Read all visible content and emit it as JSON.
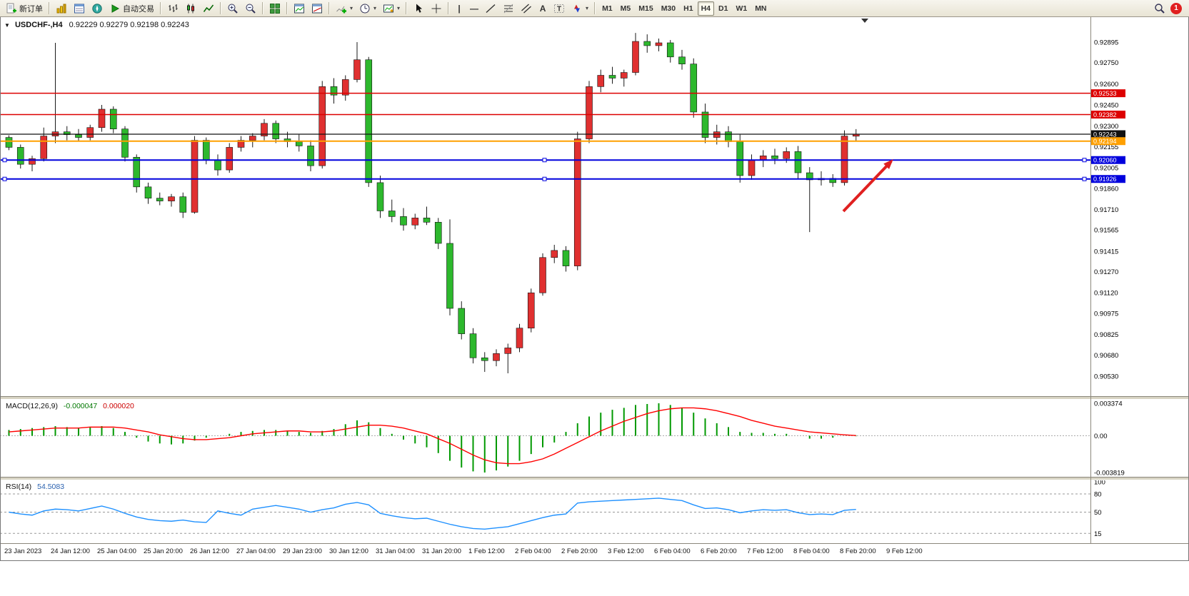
{
  "toolbar": {
    "new_order_label": "新订单",
    "autotrading_label": "自动交易",
    "timeframes": [
      "M1",
      "M5",
      "M15",
      "M30",
      "H1",
      "H4",
      "D1",
      "W1",
      "MN"
    ],
    "active_timeframe": "H4",
    "notification_count": "1",
    "icons": [
      "new-order",
      "market-watch",
      "data-window",
      "navigator",
      "autotrading",
      "bar-chart",
      "candlestick-chart",
      "line-chart",
      "zoom-in",
      "zoom-out",
      "tile-windows",
      "indicator-window",
      "objects-window",
      "add-indicator",
      "periods",
      "templates",
      "cursor",
      "crosshair",
      "vertical-line",
      "horizontal-line",
      "trendline",
      "fibonacci",
      "equidistant-channel",
      "text",
      "text-label",
      "arrows",
      "search",
      "notifications"
    ]
  },
  "chart_data": {
    "type": "candlestick",
    "symbol": "USDCHF",
    "timeframe": "H4",
    "title": "USDCHF-,H4",
    "ohlc_text": "0.92229 0.92279 0.92198 0.92243",
    "bull_color": "#e03030",
    "bear_color": "#2db82d",
    "wick_color": "#1a1a1a",
    "ylim": [
      0.90388,
      0.93072
    ],
    "price_labels": [
      "0.92895",
      "0.92750",
      "0.92600",
      "0.92450",
      "0.92300",
      "0.92155",
      "0.92005",
      "0.91860",
      "0.91710",
      "0.91565",
      "0.91415",
      "0.91270",
      "0.91120",
      "0.90975",
      "0.90825",
      "0.90680",
      "0.90530"
    ],
    "time_labels": [
      "23 Jan 2023",
      "24 Jan 12:00",
      "25 Jan 04:00",
      "25 Jan 20:00",
      "26 Jan 12:00",
      "27 Jan 04:00",
      "29 Jan 23:00",
      "30 Jan 12:00",
      "31 Jan 04:00",
      "31 Jan 20:00",
      "1 Feb 12:00",
      "2 Feb 04:00",
      "2 Feb 20:00",
      "3 Feb 12:00",
      "6 Feb 04:00",
      "6 Feb 20:00",
      "7 Feb 12:00",
      "8 Feb 04:00",
      "8 Feb 20:00",
      "9 Feb 12:00"
    ],
    "candles": [
      [
        0.9222,
        0.92235,
        0.9213,
        0.9215
      ],
      [
        0.9215,
        0.9217,
        0.92,
        0.9203
      ],
      [
        0.9203,
        0.9209,
        0.9198,
        0.9207
      ],
      [
        0.9207,
        0.9229,
        0.9205,
        0.9223
      ],
      [
        0.9223,
        0.9289,
        0.9218,
        0.9226
      ],
      [
        0.9226,
        0.923,
        0.922,
        0.9224
      ],
      [
        0.9224,
        0.9228,
        0.9219,
        0.9222
      ],
      [
        0.9222,
        0.9231,
        0.922,
        0.9229
      ],
      [
        0.9229,
        0.9245,
        0.9226,
        0.9242
      ],
      [
        0.9242,
        0.9244,
        0.9225,
        0.9228
      ],
      [
        0.9228,
        0.923,
        0.9205,
        0.9208
      ],
      [
        0.9208,
        0.921,
        0.9183,
        0.9187
      ],
      [
        0.9187,
        0.919,
        0.9175,
        0.9179
      ],
      [
        0.9179,
        0.9183,
        0.9174,
        0.9177
      ],
      [
        0.9177,
        0.9182,
        0.9173,
        0.918
      ],
      [
        0.918,
        0.9183,
        0.9165,
        0.9169
      ],
      [
        0.9169,
        0.9223,
        0.9168,
        0.922
      ],
      [
        0.922,
        0.9222,
        0.9203,
        0.9206
      ],
      [
        0.9206,
        0.921,
        0.9195,
        0.9199
      ],
      [
        0.9199,
        0.9218,
        0.9197,
        0.9215
      ],
      [
        0.9215,
        0.9223,
        0.9212,
        0.922
      ],
      [
        0.922,
        0.9225,
        0.9215,
        0.9223
      ],
      [
        0.9223,
        0.9235,
        0.922,
        0.9232
      ],
      [
        0.9232,
        0.9234,
        0.9218,
        0.9221
      ],
      [
        0.9221,
        0.9226,
        0.9215,
        0.9219
      ],
      [
        0.9219,
        0.9224,
        0.9212,
        0.9216
      ],
      [
        0.9216,
        0.922,
        0.9198,
        0.9202
      ],
      [
        0.9202,
        0.9262,
        0.92,
        0.9258
      ],
      [
        0.9258,
        0.9264,
        0.9246,
        0.9252
      ],
      [
        0.9252,
        0.9266,
        0.9248,
        0.9263
      ],
      [
        0.9263,
        0.92895,
        0.9261,
        0.9277
      ],
      [
        0.9277,
        0.9279,
        0.9187,
        0.919
      ],
      [
        0.919,
        0.9195,
        0.9165,
        0.917
      ],
      [
        0.917,
        0.9178,
        0.9162,
        0.9166
      ],
      [
        0.9166,
        0.9172,
        0.9156,
        0.916
      ],
      [
        0.916,
        0.9168,
        0.9157,
        0.9165
      ],
      [
        0.9165,
        0.9173,
        0.916,
        0.9162
      ],
      [
        0.9162,
        0.9165,
        0.9143,
        0.9147
      ],
      [
        0.9147,
        0.9164,
        0.9096,
        0.9101
      ],
      [
        0.9101,
        0.9106,
        0.9079,
        0.9083
      ],
      [
        0.9083,
        0.9087,
        0.9062,
        0.9066
      ],
      [
        0.9066,
        0.907,
        0.9056,
        0.9064
      ],
      [
        0.9064,
        0.9072,
        0.906,
        0.9069
      ],
      [
        0.9069,
        0.9076,
        0.9055,
        0.9073
      ],
      [
        0.9073,
        0.909,
        0.907,
        0.9087
      ],
      [
        0.9087,
        0.9115,
        0.9084,
        0.9112
      ],
      [
        0.9112,
        0.914,
        0.911,
        0.9137
      ],
      [
        0.9137,
        0.9146,
        0.9133,
        0.9142
      ],
      [
        0.9142,
        0.9145,
        0.9127,
        0.9131
      ],
      [
        0.9131,
        0.9226,
        0.9128,
        0.9221
      ],
      [
        0.9221,
        0.9262,
        0.9218,
        0.9258
      ],
      [
        0.9258,
        0.927,
        0.9254,
        0.9266
      ],
      [
        0.9266,
        0.9272,
        0.926,
        0.9264
      ],
      [
        0.9264,
        0.927,
        0.9258,
        0.9268
      ],
      [
        0.9268,
        0.9296,
        0.9266,
        0.929
      ],
      [
        0.929,
        0.9295,
        0.9282,
        0.9287
      ],
      [
        0.9287,
        0.9292,
        0.9283,
        0.9289
      ],
      [
        0.9289,
        0.9291,
        0.9275,
        0.9279
      ],
      [
        0.9279,
        0.9284,
        0.927,
        0.9274
      ],
      [
        0.9274,
        0.9278,
        0.9236,
        0.924
      ],
      [
        0.924,
        0.9246,
        0.9218,
        0.9222
      ],
      [
        0.9222,
        0.9231,
        0.9217,
        0.9226
      ],
      [
        0.9226,
        0.923,
        0.9215,
        0.9219
      ],
      [
        0.9219,
        0.9224,
        0.919,
        0.9195
      ],
      [
        0.9195,
        0.921,
        0.9192,
        0.9206
      ],
      [
        0.9206,
        0.9213,
        0.9201,
        0.9209
      ],
      [
        0.9209,
        0.9214,
        0.9203,
        0.9207
      ],
      [
        0.9207,
        0.9215,
        0.9204,
        0.9212
      ],
      [
        0.9212,
        0.9216,
        0.9193,
        0.9197
      ],
      [
        0.9197,
        0.9201,
        0.9155,
        0.9192
      ],
      [
        0.9192,
        0.9198,
        0.9188,
        0.9193
      ],
      [
        0.9193,
        0.9196,
        0.9187,
        0.919
      ],
      [
        0.919,
        0.9227,
        0.9188,
        0.9223
      ],
      [
        0.92229,
        0.92279,
        0.92198,
        0.92243
      ]
    ],
    "hlines": [
      {
        "name": "resistance-1",
        "color": "#dd0000",
        "price": 0.92533,
        "label": "0.92533",
        "width": 1.4,
        "selected": false
      },
      {
        "name": "resistance-2",
        "color": "#dd0000",
        "price": 0.92382,
        "label": "0.92382",
        "width": 1.4,
        "selected": false
      },
      {
        "name": "bid-price-line",
        "color": "#111111",
        "price": 0.92243,
        "label": "0.92243",
        "width": 1.2,
        "selected": false
      },
      {
        "name": "level-orange",
        "color": "#ffa000",
        "price": 0.92194,
        "label": "0.92194",
        "width": 2,
        "selected": false
      },
      {
        "name": "support-1",
        "color": "#0000dd",
        "price": 0.9206,
        "label": "0.92060",
        "width": 2,
        "selected": true
      },
      {
        "name": "support-2",
        "color": "#0000dd",
        "price": 0.91926,
        "label": "0.91926",
        "width": 2,
        "selected": true
      }
    ],
    "arrow": {
      "color": "#e02020",
      "from": [
        1181,
        272
      ],
      "to": [
        1248,
        202
      ]
    },
    "indicators": {
      "macd": {
        "label": "MACD(12,26,9)",
        "main_value": "-0.000047",
        "signal_value": "0.000020",
        "scale": [
          "0.003374",
          "0.00",
          "-0.003819"
        ],
        "hist_color": "#009900",
        "signal_color": "#ff0000",
        "hist": [
          0.0006,
          0.0007,
          0.0008,
          0.0009,
          0.001,
          0.0009,
          0.0008,
          0.0009,
          0.001,
          0.0008,
          0.0004,
          -0.0002,
          -0.0006,
          -0.0008,
          -0.0009,
          -0.0008,
          -0.0005,
          -0.0002,
          0.0,
          0.0002,
          0.0004,
          0.0005,
          0.0006,
          0.0006,
          0.0005,
          0.0004,
          0.0003,
          0.0005,
          0.0007,
          0.0012,
          0.0016,
          0.0014,
          0.0008,
          0.0002,
          -0.0004,
          -0.0008,
          -0.0012,
          -0.0018,
          -0.0026,
          -0.0033,
          -0.0037,
          -0.003819,
          -0.0036,
          -0.0032,
          -0.0026,
          -0.0019,
          -0.0012,
          -0.0007,
          0.0004,
          0.0013,
          0.002,
          0.0024,
          0.0027,
          0.0029,
          0.0032,
          0.0033,
          0.003374,
          0.0032,
          0.0029,
          0.0024,
          0.0018,
          0.0013,
          0.0009,
          0.0004,
          0.0003,
          0.0003,
          0.0002,
          0.0002,
          0.0,
          -0.0003,
          -0.0003,
          -0.0002,
          0.0,
          -4.7e-05
        ],
        "signal": [
          0.0004,
          0.0005,
          0.0006,
          0.0007,
          0.0008,
          0.0008,
          0.0008,
          0.0009,
          0.0009,
          0.0009,
          0.0008,
          0.0006,
          0.0004,
          0.0001,
          -0.0001,
          -0.0003,
          -0.0004,
          -0.0004,
          -0.0003,
          -0.0002,
          0.0,
          0.0002,
          0.0003,
          0.0004,
          0.0005,
          0.0005,
          0.0004,
          0.0004,
          0.0005,
          0.0007,
          0.0009,
          0.0011,
          0.0011,
          0.001,
          0.0008,
          0.0005,
          0.0002,
          -0.0003,
          -0.0008,
          -0.0014,
          -0.002,
          -0.0025,
          -0.0028,
          -0.0029,
          -0.0029,
          -0.0027,
          -0.0024,
          -0.0019,
          -0.0013,
          -0.0007,
          -0.0001,
          0.0005,
          0.001,
          0.0015,
          0.0019,
          0.0023,
          0.0026,
          0.0028,
          0.0029,
          0.0029,
          0.0028,
          0.0026,
          0.0023,
          0.002,
          0.0016,
          0.0013,
          0.001,
          0.0008,
          0.0006,
          0.0004,
          0.0003,
          0.0002,
          0.0001,
          2e-05
        ]
      },
      "rsi": {
        "label": "RSI(14)",
        "value": "54.5083",
        "line_color": "#1e90ff",
        "levels": [
          "100",
          "80",
          "50",
          "15"
        ],
        "values": [
          50,
          47,
          45,
          52,
          55,
          54,
          52,
          56,
          60,
          55,
          48,
          42,
          38,
          36,
          35,
          37,
          34,
          33,
          52,
          48,
          45,
          55,
          58,
          61,
          58,
          55,
          50,
          54,
          57,
          63,
          66,
          62,
          48,
          44,
          41,
          39,
          40,
          35,
          30,
          26,
          23,
          22,
          24,
          26,
          31,
          36,
          41,
          45,
          47,
          65,
          67,
          68,
          69,
          70,
          71,
          72,
          73,
          71,
          69,
          62,
          56,
          57,
          54,
          49,
          52,
          54,
          53,
          54,
          49,
          46,
          47,
          46,
          53,
          54.5083
        ]
      }
    }
  }
}
